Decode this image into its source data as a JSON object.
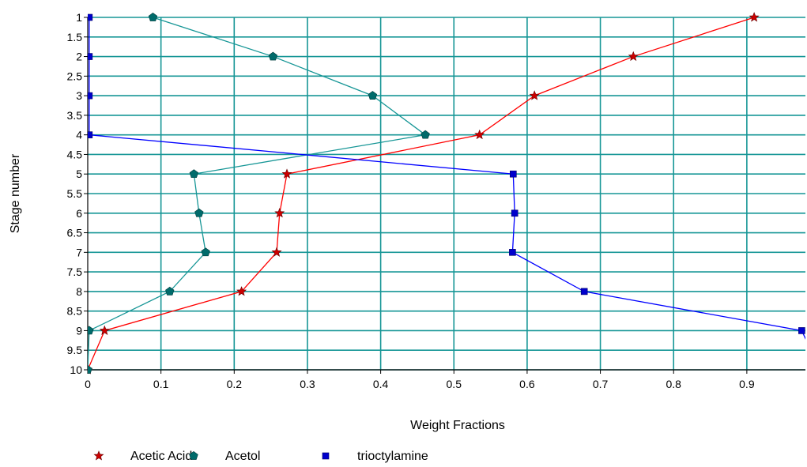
{
  "chart_data": {
    "type": "line",
    "xlabel": "Weight Fractions",
    "ylabel": "Stage number",
    "xlim": [
      0,
      0.98
    ],
    "ylim": [
      1,
      10
    ],
    "y_inverted": true,
    "x_ticks": [
      0,
      0.1,
      0.2,
      0.3,
      0.4,
      0.5,
      0.6,
      0.7,
      0.8,
      0.9
    ],
    "x_tick_labels": [
      "0",
      "0.1",
      "0.2",
      "0.3",
      "0.4",
      "0.5",
      "0.6",
      "0.7",
      "0.8",
      "0.9"
    ],
    "y_ticks": [
      1,
      1.5,
      2,
      2.5,
      3,
      3.5,
      4,
      4.5,
      5,
      5.5,
      6,
      6.5,
      7,
      7.5,
      8,
      8.5,
      9,
      9.5,
      10
    ],
    "y_tick_labels": [
      "1",
      "1.5",
      "2",
      "2.5",
      "3",
      "3.5",
      "4",
      "4.5",
      "5",
      "5.5",
      "6",
      "6.5",
      "7",
      "7.5",
      "8",
      "8.5",
      "9",
      "9.5",
      "10"
    ],
    "grid": true,
    "legend_position": "bottom",
    "colors": {
      "grid": "#169696",
      "axis": "#000000",
      "acetic_acid": "#ff0000",
      "acetol": "#169696",
      "trioctylamine": "#0000ff"
    },
    "series": [
      {
        "name": "Acetic Acid",
        "marker": "star",
        "line_color": "#ff0000",
        "marker_color": "#cc0000",
        "points": [
          [
            0.91,
            1
          ],
          [
            0.745,
            2
          ],
          [
            0.61,
            3
          ],
          [
            0.535,
            4
          ],
          [
            0.272,
            5
          ],
          [
            0.262,
            6
          ],
          [
            0.258,
            7
          ],
          [
            0.21,
            8
          ],
          [
            0.023,
            9
          ],
          [
            0.0,
            10
          ]
        ]
      },
      {
        "name": "Acetol",
        "marker": "pentagon",
        "line_color": "#169696",
        "marker_color": "#006b6b",
        "points": [
          [
            0.089,
            1
          ],
          [
            0.253,
            2
          ],
          [
            0.389,
            3
          ],
          [
            0.461,
            4
          ],
          [
            0.145,
            5
          ],
          [
            0.152,
            6
          ],
          [
            0.161,
            7
          ],
          [
            0.112,
            8
          ],
          [
            0.002,
            9
          ],
          [
            0.0,
            10
          ]
        ]
      },
      {
        "name": "trioctylamine",
        "marker": "square",
        "line_color": "#0000ff",
        "marker_color": "#0000cc",
        "points": [
          [
            0.002,
            1
          ],
          [
            0.002,
            2
          ],
          [
            0.002,
            3
          ],
          [
            0.002,
            4
          ],
          [
            0.581,
            5
          ],
          [
            0.583,
            6
          ],
          [
            0.58,
            7
          ],
          [
            0.678,
            8
          ],
          [
            0.975,
            9
          ],
          [
            0.99,
            9.6
          ]
        ]
      }
    ]
  }
}
